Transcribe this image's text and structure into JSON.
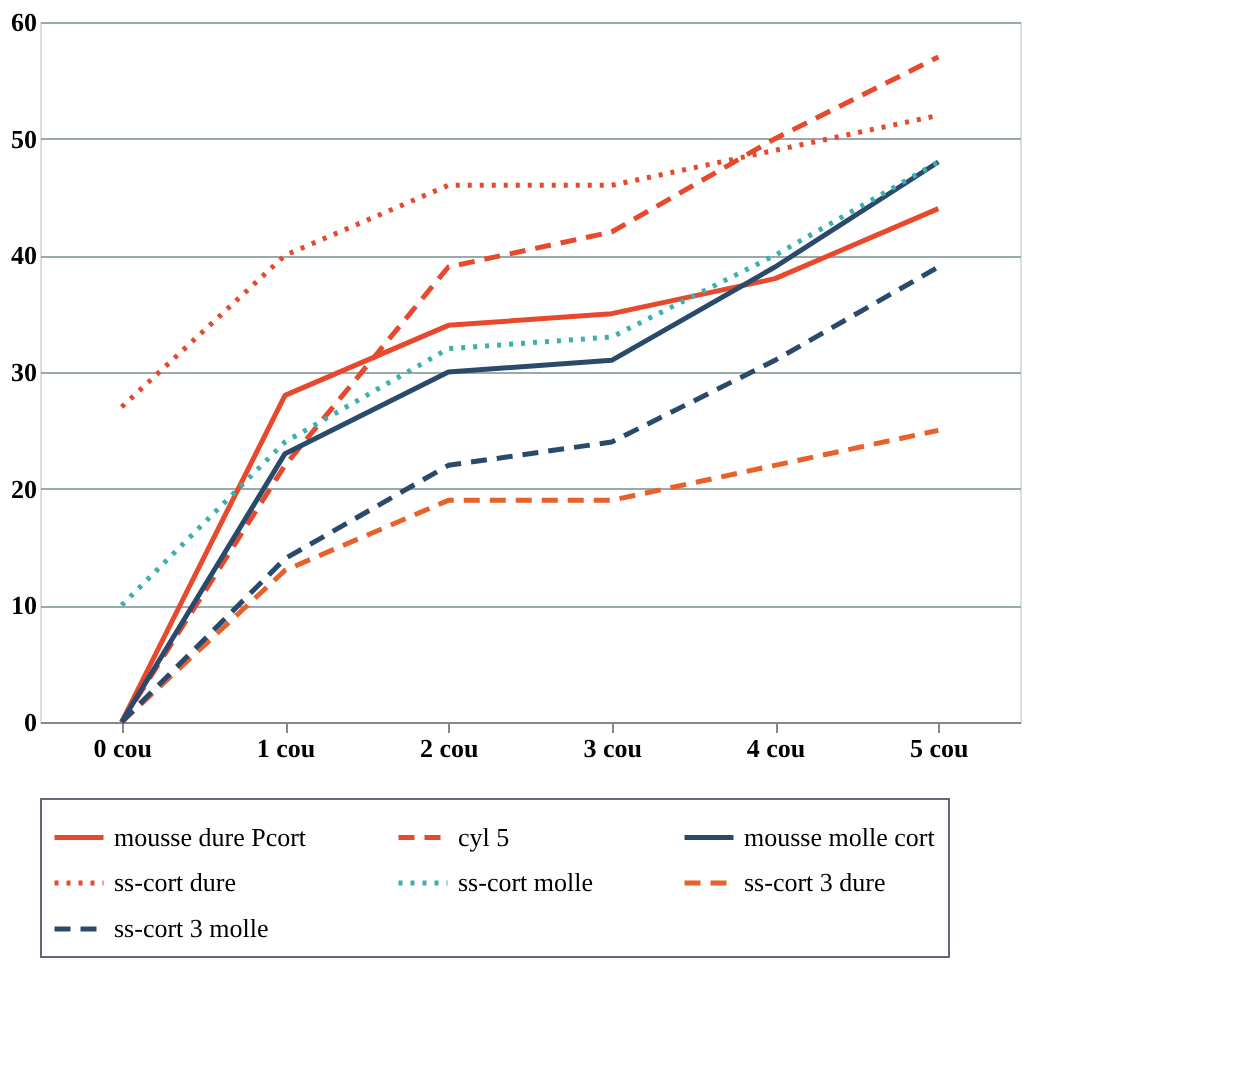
{
  "chart_data": {
    "type": "line",
    "categories": [
      "0 cou",
      "1 cou",
      "2 cou",
      "3 cou",
      "4 cou",
      "5 cou"
    ],
    "ylim": [
      0,
      60
    ],
    "yticks": [
      0,
      10,
      20,
      30,
      40,
      50,
      60
    ],
    "grid": "y",
    "legend": "bottom",
    "marker": "none",
    "series": [
      {
        "name": "mousse dure Pcort",
        "color": "#e8482c",
        "line_style": "solid",
        "values": [
          0,
          28,
          34,
          35,
          38,
          44
        ]
      },
      {
        "name": "cyl 5",
        "color": "#e8482c",
        "line_style": "dashed",
        "values": [
          0,
          22,
          39,
          42,
          50,
          57
        ]
      },
      {
        "name": "mousse molle cort",
        "color": "#2a4a6b",
        "line_style": "solid",
        "values": [
          0,
          23,
          30,
          31,
          39,
          48
        ]
      },
      {
        "name": "ss-cort dure",
        "color": "#e8482c",
        "line_style": "dotted",
        "values": [
          27,
          40,
          46,
          46,
          49,
          52
        ]
      },
      {
        "name": "ss-cort molle",
        "color": "#3ab0b0",
        "line_style": "dotted",
        "values": [
          10,
          24,
          32,
          33,
          40,
          48
        ]
      },
      {
        "name": "ss-cort 3 dure",
        "color": "#e8602a",
        "line_style": "dashed",
        "values": [
          0,
          13,
          19,
          19,
          22,
          25
        ]
      },
      {
        "name": "ss-cort 3 molle",
        "color": "#2a4a6b",
        "line_style": "dashed",
        "values": [
          0,
          14,
          22,
          24,
          31,
          39
        ]
      }
    ]
  }
}
